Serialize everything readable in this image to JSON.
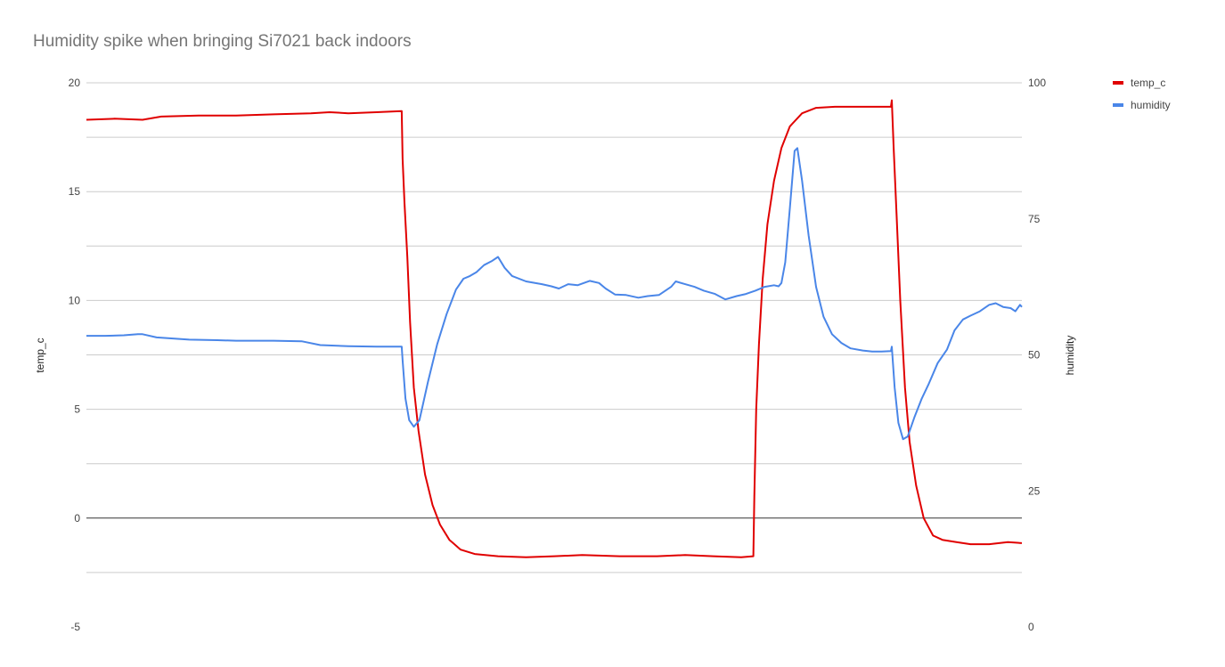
{
  "chart_data": {
    "type": "line",
    "title": "Humidity spike when bringing Si7021 back indoors",
    "left_axis": {
      "label": "temp_c",
      "range": [
        -5,
        20
      ],
      "ticks": [
        -5,
        0,
        5,
        10,
        15,
        20
      ]
    },
    "right_axis": {
      "label": "humidity",
      "range": [
        0,
        100
      ],
      "ticks": [
        0,
        25,
        50,
        75,
        100
      ]
    },
    "gridlines": true,
    "legend_position": "right",
    "x_range": [
      0,
      1000
    ],
    "series": [
      {
        "name": "temp_c",
        "axis": "left",
        "color": "#e00000",
        "points": [
          [
            0,
            18.3
          ],
          [
            30,
            18.35
          ],
          [
            60,
            18.3
          ],
          [
            80,
            18.45
          ],
          [
            120,
            18.5
          ],
          [
            160,
            18.5
          ],
          [
            200,
            18.55
          ],
          [
            240,
            18.6
          ],
          [
            260,
            18.65
          ],
          [
            280,
            18.6
          ],
          [
            310,
            18.65
          ],
          [
            337,
            18.7
          ],
          [
            338,
            16.5
          ],
          [
            340,
            14.5
          ],
          [
            343,
            12.0
          ],
          [
            346,
            9.0
          ],
          [
            350,
            6.0
          ],
          [
            355,
            4.0
          ],
          [
            362,
            2.0
          ],
          [
            370,
            0.6
          ],
          [
            378,
            -0.3
          ],
          [
            388,
            -1.0
          ],
          [
            400,
            -1.45
          ],
          [
            415,
            -1.65
          ],
          [
            440,
            -1.75
          ],
          [
            470,
            -1.8
          ],
          [
            500,
            -1.75
          ],
          [
            530,
            -1.7
          ],
          [
            570,
            -1.75
          ],
          [
            610,
            -1.75
          ],
          [
            640,
            -1.7
          ],
          [
            670,
            -1.75
          ],
          [
            700,
            -1.8
          ],
          [
            713,
            -1.75
          ],
          [
            714,
            1.0
          ],
          [
            716,
            5.0
          ],
          [
            719,
            8.0
          ],
          [
            723,
            11.0
          ],
          [
            728,
            13.5
          ],
          [
            735,
            15.5
          ],
          [
            743,
            17.0
          ],
          [
            752,
            18.0
          ],
          [
            765,
            18.6
          ],
          [
            780,
            18.85
          ],
          [
            800,
            18.9
          ],
          [
            830,
            18.9
          ],
          [
            860,
            18.9
          ],
          [
            861,
            19.2
          ],
          [
            863,
            17.0
          ],
          [
            866,
            14.0
          ],
          [
            870,
            10.0
          ],
          [
            875,
            6.0
          ],
          [
            880,
            3.5
          ],
          [
            887,
            1.5
          ],
          [
            895,
            0.0
          ],
          [
            905,
            -0.8
          ],
          [
            915,
            -1.0
          ],
          [
            930,
            -1.1
          ],
          [
            945,
            -1.2
          ],
          [
            965,
            -1.2
          ],
          [
            985,
            -1.1
          ],
          [
            1000,
            -1.15
          ]
        ]
      },
      {
        "name": "humidity",
        "axis": "right",
        "color": "#4a86e8",
        "points": [
          [
            0,
            53.5
          ],
          [
            20,
            53.5
          ],
          [
            40,
            53.6
          ],
          [
            55,
            53.8
          ],
          [
            60,
            53.8
          ],
          [
            75,
            53.2
          ],
          [
            110,
            52.8
          ],
          [
            140,
            52.7
          ],
          [
            160,
            52.6
          ],
          [
            200,
            52.6
          ],
          [
            230,
            52.5
          ],
          [
            250,
            51.8
          ],
          [
            280,
            51.6
          ],
          [
            310,
            51.5
          ],
          [
            337,
            51.5
          ],
          [
            338,
            49.0
          ],
          [
            341,
            42.0
          ],
          [
            345,
            38.0
          ],
          [
            350,
            36.8
          ],
          [
            356,
            38.0
          ],
          [
            365,
            45.0
          ],
          [
            375,
            52.0
          ],
          [
            385,
            57.5
          ],
          [
            395,
            62.0
          ],
          [
            403,
            64.0
          ],
          [
            410,
            64.5
          ],
          [
            417,
            65.2
          ],
          [
            425,
            66.5
          ],
          [
            433,
            67.2
          ],
          [
            440,
            68.0
          ],
          [
            447,
            66.0
          ],
          [
            455,
            64.5
          ],
          [
            470,
            63.5
          ],
          [
            487,
            63.0
          ],
          [
            497,
            62.6
          ],
          [
            505,
            62.2
          ],
          [
            515,
            63.0
          ],
          [
            525,
            62.8
          ],
          [
            538,
            63.6
          ],
          [
            548,
            63.2
          ],
          [
            555,
            62.2
          ],
          [
            565,
            61.1
          ],
          [
            577,
            61.0
          ],
          [
            590,
            60.5
          ],
          [
            600,
            60.8
          ],
          [
            612,
            61.0
          ],
          [
            625,
            62.5
          ],
          [
            630,
            63.5
          ],
          [
            640,
            63.0
          ],
          [
            650,
            62.5
          ],
          [
            660,
            61.8
          ],
          [
            672,
            61.2
          ],
          [
            683,
            60.2
          ],
          [
            695,
            60.8
          ],
          [
            705,
            61.2
          ],
          [
            715,
            61.8
          ],
          [
            725,
            62.5
          ],
          [
            735,
            62.8
          ],
          [
            740,
            62.6
          ],
          [
            743,
            63.2
          ],
          [
            747,
            67.0
          ],
          [
            752,
            77.0
          ],
          [
            757,
            87.5
          ],
          [
            760,
            88.0
          ],
          [
            765,
            82.0
          ],
          [
            772,
            72.0
          ],
          [
            780,
            62.5
          ],
          [
            788,
            57.0
          ],
          [
            797,
            53.8
          ],
          [
            807,
            52.2
          ],
          [
            817,
            51.2
          ],
          [
            830,
            50.8
          ],
          [
            840,
            50.6
          ],
          [
            850,
            50.6
          ],
          [
            860,
            50.7
          ],
          [
            861,
            51.5
          ],
          [
            864,
            44.0
          ],
          [
            868,
            37.5
          ],
          [
            873,
            34.5
          ],
          [
            878,
            35.0
          ],
          [
            885,
            38.5
          ],
          [
            893,
            42.0
          ],
          [
            900,
            44.5
          ],
          [
            910,
            48.5
          ],
          [
            920,
            51.0
          ],
          [
            928,
            54.5
          ],
          [
            937,
            56.5
          ],
          [
            945,
            57.2
          ],
          [
            955,
            58.0
          ],
          [
            965,
            59.2
          ],
          [
            972,
            59.5
          ],
          [
            980,
            58.8
          ],
          [
            988,
            58.6
          ],
          [
            993,
            58.0
          ],
          [
            998,
            59.2
          ],
          [
            1000,
            58.8
          ]
        ]
      }
    ]
  }
}
